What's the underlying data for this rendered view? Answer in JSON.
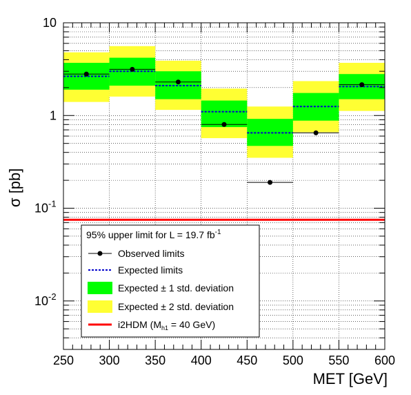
{
  "chart_data": {
    "type": "line",
    "xlabel": "MET [GeV]",
    "ylabel": "σ [pb]",
    "xlim": [
      250,
      600
    ],
    "ylim": [
      0.003,
      10
    ],
    "yscale": "log",
    "grid": true,
    "legend_position": "bottom-left",
    "x_ticks": [
      "250",
      "300",
      "350",
      "400",
      "450",
      "500",
      "550",
      "600"
    ],
    "y_ticks": [
      {
        "value": 10,
        "base": "10",
        "exp": ""
      },
      {
        "value": 1,
        "base": "1",
        "exp": ""
      },
      {
        "value": 0.1,
        "base": "10",
        "exp": "-1"
      },
      {
        "value": 0.01,
        "base": "10",
        "exp": "-2"
      }
    ],
    "bins": [
      {
        "low": 250,
        "high": 300,
        "observed": 2.8,
        "expected": 2.65,
        "band1": [
          1.9,
          3.7
        ],
        "band2": [
          1.4,
          4.8
        ]
      },
      {
        "low": 300,
        "high": 350,
        "observed": 3.15,
        "expected": 3.0,
        "band1": [
          2.1,
          4.2
        ],
        "band2": [
          1.6,
          5.6
        ]
      },
      {
        "low": 350,
        "high": 400,
        "observed": 2.3,
        "expected": 2.1,
        "band1": [
          1.5,
          3.0
        ],
        "band2": [
          1.15,
          3.9
        ]
      },
      {
        "low": 400,
        "high": 450,
        "observed": 0.8,
        "expected": 1.1,
        "band1": [
          0.75,
          1.45
        ],
        "band2": [
          0.57,
          1.95
        ]
      },
      {
        "low": 450,
        "high": 500,
        "observed": 0.19,
        "expected": 0.65,
        "band1": [
          0.47,
          0.92
        ],
        "band2": [
          0.35,
          1.25
        ]
      },
      {
        "low": 500,
        "high": 550,
        "observed": 0.65,
        "expected": 1.25,
        "band1": [
          0.88,
          1.75
        ],
        "band2": [
          0.66,
          2.35
        ]
      },
      {
        "low": 550,
        "high": 600,
        "observed": 2.15,
        "expected": 2.05,
        "band1": [
          1.5,
          2.8
        ],
        "band2": [
          1.12,
          3.7
        ]
      }
    ],
    "theory_line": {
      "name": "i2HDM (M",
      "sub": "h1",
      "suffix": " = 40 GeV)",
      "value": 0.075
    },
    "legend": {
      "title": "95% upper limit for L = 19.7 fb",
      "title_sup": "-1",
      "observed": "Observed limits",
      "expected": "Expected limits",
      "band1": "Expected ± 1 std. deviation",
      "band2": "Expected ± 2 std. deviation"
    },
    "colors": {
      "band1": "#00ff00",
      "band2": "#ffff33",
      "expected": "#0000cc",
      "observed": "#000000",
      "theory": "#ff0000"
    }
  }
}
